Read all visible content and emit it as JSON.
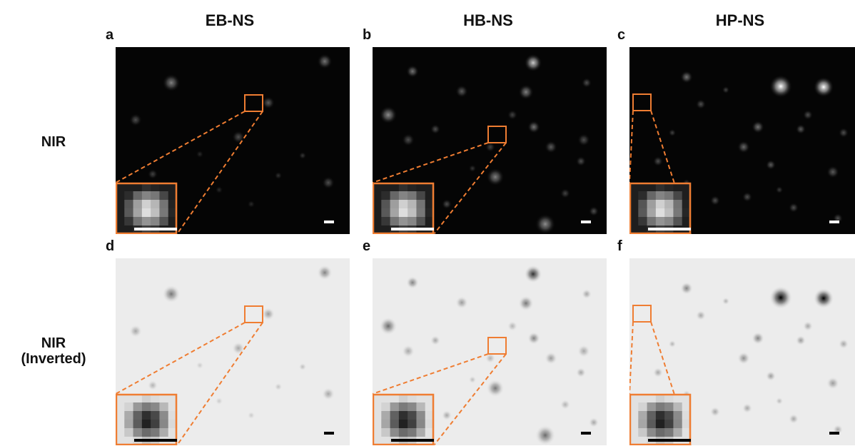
{
  "columns": [
    {
      "title": "EB-NS"
    },
    {
      "title": "HB-NS"
    },
    {
      "title": "HP-NS"
    }
  ],
  "rows": [
    {
      "label": "NIR"
    },
    {
      "label": "NIR\n(Inverted)"
    }
  ],
  "panels": [
    {
      "letter": "a",
      "inverted": false
    },
    {
      "letter": "b",
      "inverted": false
    },
    {
      "letter": "c",
      "inverted": false
    },
    {
      "letter": "d",
      "inverted": true
    },
    {
      "letter": "e",
      "inverted": true
    },
    {
      "letter": "f",
      "inverted": true
    }
  ],
  "colors": {
    "highlight": "#ef7d32",
    "dark_background": "#050505",
    "light_background": "#ececec"
  }
}
